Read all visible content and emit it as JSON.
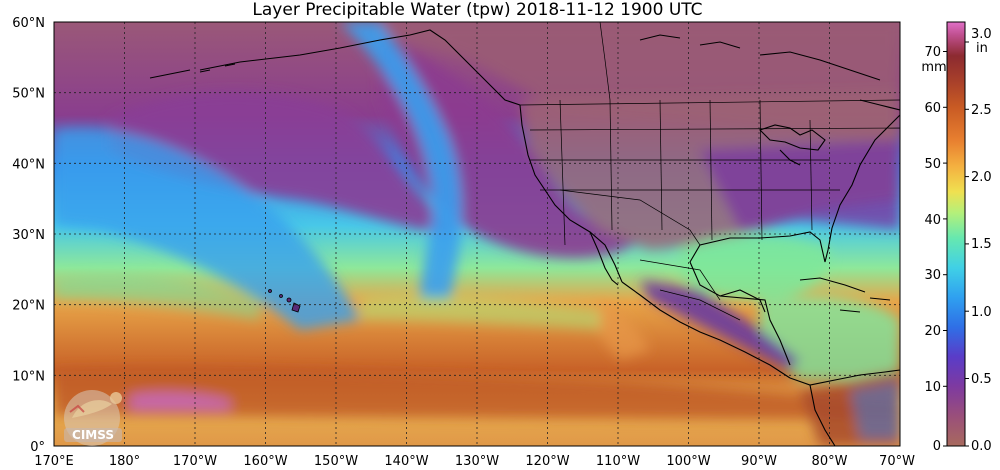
{
  "title": "Layer Precipitable Water (tpw)  2018-11-12 1900 UTC",
  "logo_text": "CIMSS",
  "map": {
    "lat_labels": [
      "60°N",
      "50°N",
      "40°N",
      "30°N",
      "20°N",
      "10°N",
      "0°"
    ],
    "lon_labels": [
      "170°E",
      "180°",
      "170°W",
      "160°W",
      "150°W",
      "140°W",
      "130°W",
      "120°W",
      "110°W",
      "100°W",
      "90°W",
      "80°W",
      "70°W"
    ]
  },
  "colorbar": {
    "mm_unit": "mm",
    "in_unit": "in",
    "mm_ticks": [
      "70",
      "60",
      "50",
      "40",
      "30",
      "20",
      "10",
      "0"
    ],
    "in_ticks": [
      "3.0",
      "2.5",
      "2.0",
      "1.5",
      "1.0",
      "0.5",
      "0.0"
    ],
    "colors": [
      "#a86a5e",
      "#9a4f7a",
      "#7e3aa0",
      "#5a3cc8",
      "#2f6fe6",
      "#2fa0f0",
      "#40d0e6",
      "#66e8b0",
      "#b4f07a",
      "#f0e050",
      "#f4b040",
      "#e88030",
      "#c85a24",
      "#a8402a",
      "#8c2a30",
      "#c05090",
      "#e070c8"
    ]
  }
}
